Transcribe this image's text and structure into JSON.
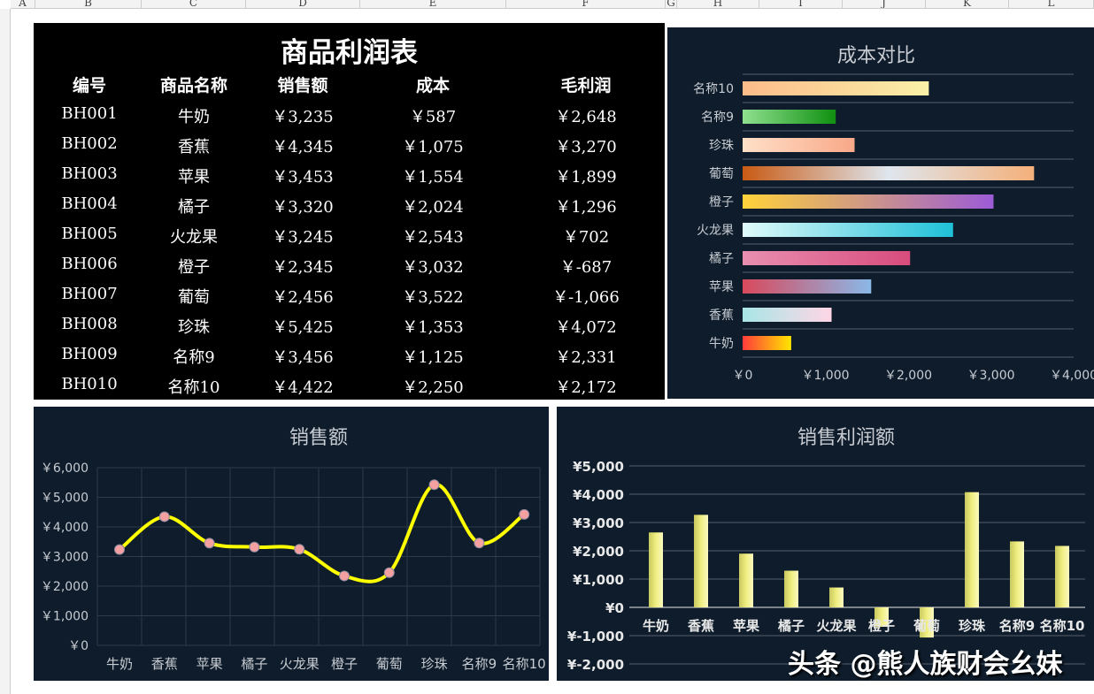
{
  "sheet": {
    "columns": [
      "A",
      "B",
      "C",
      "D",
      "E",
      "F",
      "G",
      "H",
      "I",
      "J",
      "K",
      "L"
    ]
  },
  "table": {
    "title": "商品利润表",
    "headers": [
      "编号",
      "商品名称",
      "销售额",
      "成本",
      "毛利润"
    ],
    "rows": [
      [
        "BH001",
        "牛奶",
        "￥3,235",
        "￥587",
        "￥2,648"
      ],
      [
        "BH002",
        "香蕉",
        "￥4,345",
        "￥1,075",
        "￥3,270"
      ],
      [
        "BH003",
        "苹果",
        "￥3,453",
        "￥1,554",
        "￥1,899"
      ],
      [
        "BH004",
        "橘子",
        "￥3,320",
        "￥2,024",
        "￥1,296"
      ],
      [
        "BH005",
        "火龙果",
        "￥3,245",
        "￥2,543",
        "￥702"
      ],
      [
        "BH006",
        "橙子",
        "￥2,345",
        "￥3,032",
        "￥-687"
      ],
      [
        "BH007",
        "葡萄",
        "￥2,456",
        "￥3,522",
        "￥-1,066"
      ],
      [
        "BH008",
        "珍珠",
        "￥5,425",
        "￥1,353",
        "￥4,072"
      ],
      [
        "BH009",
        "名称9",
        "￥3,456",
        "￥1,125",
        "￥2,331"
      ],
      [
        "BH010",
        "名称10",
        "￥4,422",
        "￥2,250",
        "￥2,172"
      ]
    ]
  },
  "chart_data": [
    {
      "type": "bar",
      "orientation": "horizontal",
      "title": "成本对比",
      "categories": [
        "牛奶",
        "香蕉",
        "苹果",
        "橘子",
        "火龙果",
        "橙子",
        "葡萄",
        "珍珠",
        "名称9",
        "名称10"
      ],
      "values": [
        587,
        1075,
        1554,
        2024,
        2543,
        3032,
        3522,
        1353,
        1125,
        2250
      ],
      "xlim": [
        0,
        4000
      ],
      "xticks": [
        "￥0",
        "￥1,000",
        "￥2,000",
        "￥3,000",
        "￥4,000"
      ],
      "bar_gradients": [
        [
          "#ff3b3b",
          "#ffe600"
        ],
        [
          "#a8e6e6",
          "#ffd6e6"
        ],
        [
          "#d9495c",
          "#8ab8e8"
        ],
        [
          "#e88fb0",
          "#d84c7c"
        ],
        [
          "#e0fafa",
          "#1ec0d8"
        ],
        [
          "#ffd23a",
          "#9c5bd6"
        ],
        [
          "#c85a14",
          "#dfe6ee",
          "#f4b07a"
        ],
        [
          "#ffe0c8",
          "#f8a888"
        ],
        [
          "#8fe08f",
          "#109010"
        ],
        [
          "#fcbc8a",
          "#faf0a8"
        ]
      ],
      "grid": true
    },
    {
      "type": "line",
      "smooth": true,
      "title": "销售额",
      "categories": [
        "牛奶",
        "香蕉",
        "苹果",
        "橘子",
        "火龙果",
        "橙子",
        "葡萄",
        "珍珠",
        "名称9",
        "名称10"
      ],
      "values": [
        3235,
        4345,
        3453,
        3320,
        3245,
        2345,
        2456,
        5425,
        3456,
        4422
      ],
      "ylim": [
        0,
        6000
      ],
      "yticks": [
        "￥0",
        "￥1,000",
        "￥2,000",
        "￥3,000",
        "￥4,000",
        "￥5,000",
        "￥6,000"
      ],
      "line_color": "#ffff00",
      "marker_color": "#f4a0a0",
      "grid": true
    },
    {
      "type": "bar",
      "title": "销售利润额",
      "categories": [
        "牛奶",
        "香蕉",
        "苹果",
        "橘子",
        "火龙果",
        "橙子",
        "葡萄",
        "珍珠",
        "名称9",
        "名称10"
      ],
      "values": [
        2648,
        3270,
        1899,
        1296,
        702,
        -687,
        -1066,
        4072,
        2331,
        2172
      ],
      "ylim": [
        -2000,
        5000
      ],
      "yticks": [
        "¥-2,000",
        "¥-1,000",
        "¥0",
        "¥1,000",
        "¥2,000",
        "¥3,000",
        "¥4,000",
        "¥5,000"
      ],
      "bar_color": "#f0ee80",
      "grid": true
    }
  ],
  "watermark": "头条 @熊人族财会幺妹"
}
